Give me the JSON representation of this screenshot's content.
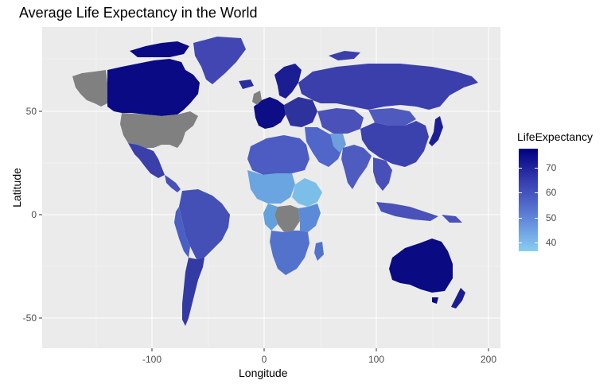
{
  "title": "Average Life Expectancy in the World",
  "chart_data": {
    "type": "choropleth",
    "title": "Average Life Expectancy in the World",
    "xlabel": "Longitude",
    "ylabel": "Latitude",
    "x_ticks": [
      "-100",
      "0",
      "100",
      "200"
    ],
    "y_ticks": [
      "50",
      "0",
      "-50"
    ],
    "xlim": [
      -190,
      205
    ],
    "ylim": [
      -63,
      88
    ],
    "grid": "on",
    "legend": {
      "title": "LifeExpectancy",
      "placement": "right",
      "ticks": [
        "70",
        "60",
        "50",
        "40"
      ],
      "range": [
        37,
        77
      ],
      "colors": {
        "low": "#87CEEB",
        "high": "#000080",
        "missing": "#808080"
      }
    },
    "regions": [
      {
        "name": "Canada",
        "value": 77
      },
      {
        "name": "Australia",
        "value": 77
      },
      {
        "name": "Western Europe",
        "value": 74
      },
      {
        "name": "Scandinavia",
        "value": 73
      },
      {
        "name": "Japan",
        "value": 72
      },
      {
        "name": "New Zealand",
        "value": 73
      },
      {
        "name": "Argentina/Chile",
        "value": 67
      },
      {
        "name": "Mexico",
        "value": 67
      },
      {
        "name": "Russia",
        "value": 62
      },
      {
        "name": "China",
        "value": 62
      },
      {
        "name": "Brazil",
        "value": 60
      },
      {
        "name": "Greenland",
        "value": 60
      },
      {
        "name": "India",
        "value": 55
      },
      {
        "name": "North Africa",
        "value": 52
      },
      {
        "name": "Southern Africa",
        "value": 50
      },
      {
        "name": "West/Central Africa",
        "value": 44
      },
      {
        "name": "United States",
        "value": null
      },
      {
        "name": "Alaska",
        "value": null
      },
      {
        "name": "DR Congo",
        "value": null
      }
    ]
  }
}
